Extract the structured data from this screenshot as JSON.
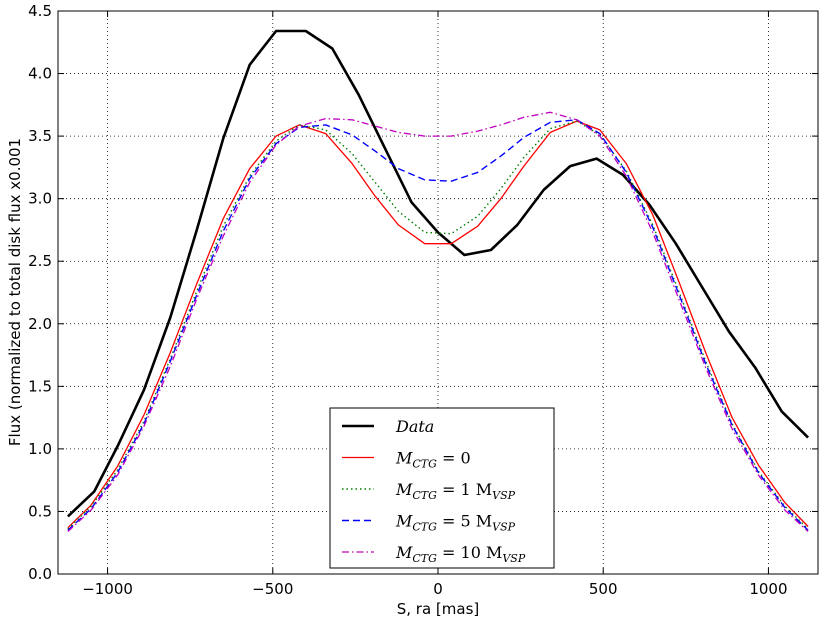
{
  "chart_data": {
    "type": "line",
    "title": "",
    "xlabel": "S, ra [mas]",
    "ylabel": "Flux (normalized to total disk flux x0.001",
    "xlim": [
      -1150,
      1150
    ],
    "ylim": [
      0.0,
      4.5
    ],
    "x_ticks": [
      -1000,
      -500,
      0,
      500,
      1000
    ],
    "x_tick_labels": [
      "−1000",
      "−500",
      "0",
      "500",
      "1000"
    ],
    "y_ticks": [
      0.0,
      0.5,
      1.0,
      1.5,
      2.0,
      2.5,
      3.0,
      3.5,
      4.0,
      4.5
    ],
    "y_tick_labels": [
      "0.0",
      "0.5",
      "1.0",
      "1.5",
      "2.0",
      "2.5",
      "3.0",
      "3.5",
      "4.0",
      "4.5"
    ],
    "grid": true,
    "legend_position": "bottom-center",
    "legend": [
      {
        "text": "Data",
        "sub": "",
        "rest": "",
        "sub2": ""
      },
      {
        "text": "M",
        "sub": "CTG",
        "rest": " = 0",
        "sub2": ""
      },
      {
        "text": "M",
        "sub": "CTG",
        "rest": " = 1 M",
        "sub2": "VSP"
      },
      {
        "text": "M",
        "sub": "CTG",
        "rest": " = 5 M",
        "sub2": "VSP"
      },
      {
        "text": "M",
        "sub": "CTG",
        "rest": " = 10 M",
        "sub2": "VSP"
      }
    ],
    "series": [
      {
        "name": "Data",
        "color": "#000000",
        "style": "solid",
        "width": 2.6,
        "x": [
          -1120,
          -1040,
          -970,
          -890,
          -810,
          -730,
          -650,
          -570,
          -490,
          -400,
          -320,
          -240,
          -160,
          -80,
          0,
          80,
          160,
          240,
          320,
          400,
          480,
          560,
          640,
          720,
          800,
          880,
          960,
          1040,
          1120
        ],
        "y": [
          0.46,
          0.66,
          1.02,
          1.47,
          2.05,
          2.75,
          3.48,
          4.07,
          4.34,
          4.34,
          4.2,
          3.83,
          3.4,
          2.97,
          2.73,
          2.55,
          2.59,
          2.79,
          3.07,
          3.26,
          3.32,
          3.19,
          2.95,
          2.64,
          2.29,
          1.94,
          1.65,
          1.3,
          1.09
        ]
      },
      {
        "name": "M_CTG = 0",
        "color": "#ff0000",
        "style": "solid",
        "width": 1.3,
        "x": [
          -1120,
          -1050,
          -970,
          -890,
          -810,
          -730,
          -650,
          -570,
          -490,
          -420,
          -340,
          -260,
          -190,
          -120,
          -40,
          40,
          120,
          190,
          260,
          340,
          420,
          490,
          570,
          650,
          730,
          810,
          890,
          970,
          1050,
          1120
        ],
        "y": [
          0.37,
          0.55,
          0.86,
          1.27,
          1.77,
          2.32,
          2.84,
          3.24,
          3.5,
          3.59,
          3.52,
          3.28,
          3.02,
          2.79,
          2.64,
          2.64,
          2.78,
          3.0,
          3.26,
          3.53,
          3.62,
          3.55,
          3.28,
          2.87,
          2.33,
          1.77,
          1.25,
          0.87,
          0.57,
          0.38
        ]
      },
      {
        "name": "M_CTG = 1 M_VSP",
        "color": "#008000",
        "style": "dotted",
        "width": 1.4,
        "x": [
          -1120,
          -1050,
          -970,
          -890,
          -810,
          -730,
          -650,
          -570,
          -490,
          -420,
          -340,
          -260,
          -190,
          -120,
          -40,
          40,
          120,
          190,
          260,
          340,
          420,
          490,
          570,
          650,
          730,
          810,
          890,
          970,
          1050,
          1120
        ],
        "y": [
          0.36,
          0.54,
          0.83,
          1.22,
          1.72,
          2.26,
          2.78,
          3.18,
          3.46,
          3.59,
          3.55,
          3.36,
          3.13,
          2.9,
          2.73,
          2.72,
          2.86,
          3.08,
          3.33,
          3.56,
          3.62,
          3.51,
          3.22,
          2.79,
          2.25,
          1.7,
          1.2,
          0.82,
          0.54,
          0.36
        ]
      },
      {
        "name": "M_CTG = 5 M_VSP",
        "color": "#0000ff",
        "style": "dashed",
        "width": 1.4,
        "x": [
          -1120,
          -1050,
          -970,
          -890,
          -810,
          -730,
          -650,
          -570,
          -490,
          -420,
          -340,
          -260,
          -190,
          -120,
          -40,
          40,
          120,
          190,
          260,
          340,
          420,
          490,
          570,
          650,
          730,
          810,
          890,
          970,
          1050,
          1120
        ],
        "y": [
          0.35,
          0.52,
          0.81,
          1.2,
          1.7,
          2.23,
          2.74,
          3.16,
          3.44,
          3.57,
          3.59,
          3.51,
          3.38,
          3.24,
          3.15,
          3.14,
          3.21,
          3.34,
          3.49,
          3.61,
          3.63,
          3.52,
          3.21,
          2.77,
          2.23,
          1.68,
          1.19,
          0.81,
          0.53,
          0.35
        ]
      },
      {
        "name": "M_CTG = 10 M_VSP",
        "color": "#bf00bf",
        "style": "dashdot",
        "width": 1.3,
        "x": [
          -1120,
          -1050,
          -970,
          -890,
          -810,
          -730,
          -650,
          -570,
          -490,
          -420,
          -340,
          -260,
          -190,
          -120,
          -40,
          40,
          120,
          190,
          260,
          340,
          420,
          490,
          570,
          650,
          730,
          810,
          890,
          970,
          1050,
          1120
        ],
        "y": [
          0.34,
          0.51,
          0.79,
          1.18,
          1.66,
          2.2,
          2.7,
          3.13,
          3.43,
          3.58,
          3.64,
          3.63,
          3.58,
          3.53,
          3.5,
          3.5,
          3.54,
          3.59,
          3.65,
          3.69,
          3.63,
          3.5,
          3.18,
          2.73,
          2.19,
          1.65,
          1.16,
          0.79,
          0.51,
          0.34
        ]
      }
    ]
  }
}
